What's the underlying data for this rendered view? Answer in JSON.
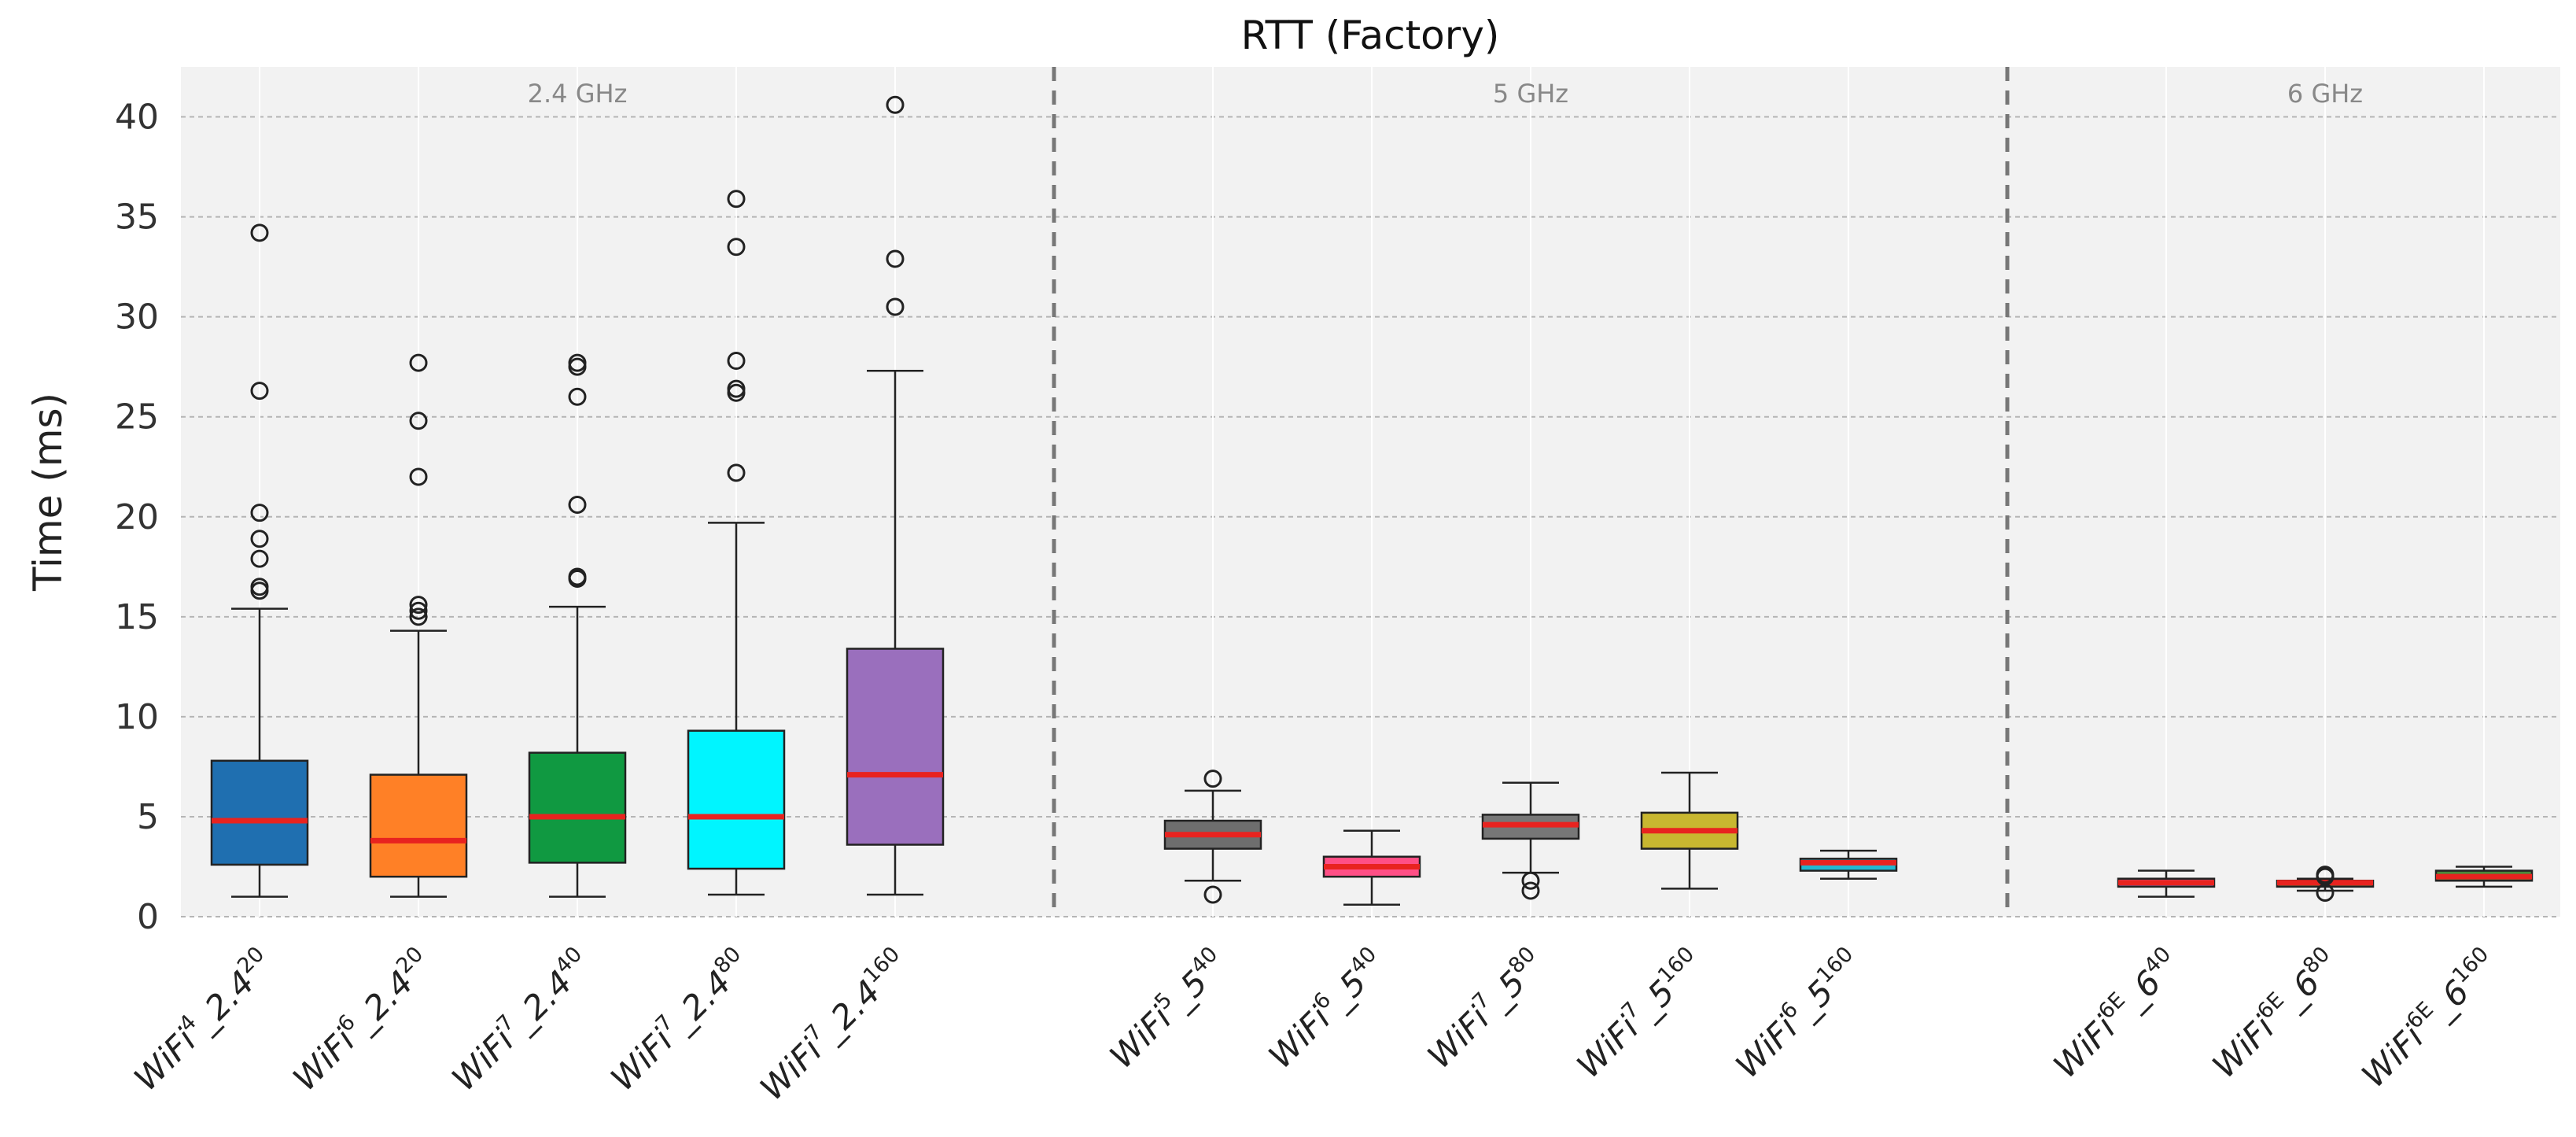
{
  "chart_data": {
    "type": "box",
    "title": "RTT (Factory)",
    "ylabel": "Time (ms)",
    "xlabel": "",
    "ylim": [
      0,
      42.5
    ],
    "yticks": [
      0,
      5,
      10,
      15,
      20,
      25,
      30,
      35,
      40
    ],
    "grid": true,
    "groups": [
      {
        "label": "2.4 GHz",
        "start": 0,
        "end": 4
      },
      {
        "label": "5 GHz",
        "start": 5,
        "end": 9
      },
      {
        "label": "6 GHz",
        "start": 10,
        "end": 12
      }
    ],
    "median_color": "#e8231f",
    "boxes": [
      {
        "label_main": "WiFi",
        "label_sup1": "4",
        "label_mid": "_2.4",
        "label_sup2": "20",
        "color": "#1f6fb0",
        "whisker_low": 1.0,
        "q1": 2.6,
        "median": 4.8,
        "q3": 7.8,
        "whisker_high": 15.4,
        "outliers": [
          16.3,
          16.5,
          17.9,
          18.9,
          20.2,
          26.3,
          34.2
        ]
      },
      {
        "label_main": "WiFi",
        "label_sup1": "6",
        "label_mid": "_2.4",
        "label_sup2": "20",
        "color": "#ff8026",
        "whisker_low": 1.0,
        "q1": 2.0,
        "median": 3.8,
        "q3": 7.1,
        "whisker_high": 14.3,
        "outliers": [
          15.0,
          15.3,
          15.6,
          22.0,
          24.8,
          27.7
        ]
      },
      {
        "label_main": "WiFi",
        "label_sup1": "7",
        "label_mid": "_2.4",
        "label_sup2": "40",
        "color": "#109941",
        "whisker_low": 1.0,
        "q1": 2.7,
        "median": 5.0,
        "q3": 8.2,
        "whisker_high": 15.5,
        "outliers": [
          16.9,
          17.0,
          20.6,
          26.0,
          27.5,
          27.7
        ]
      },
      {
        "label_main": "WiFi",
        "label_sup1": "7",
        "label_mid": "_2.4",
        "label_sup2": "80",
        "color": "#00f5ff",
        "whisker_low": 1.1,
        "q1": 2.4,
        "median": 5.0,
        "q3": 9.3,
        "whisker_high": 19.7,
        "outliers": [
          22.2,
          26.2,
          26.4,
          27.8,
          33.5,
          35.9
        ]
      },
      {
        "label_main": "WiFi",
        "label_sup1": "7",
        "label_mid": "_2.4",
        "label_sup2": "160",
        "color": "#9a6fbd",
        "whisker_low": 1.1,
        "q1": 3.6,
        "median": 7.1,
        "q3": 13.4,
        "whisker_high": 27.3,
        "outliers": [
          30.5,
          32.9,
          40.6
        ]
      },
      {
        "label_main": "WiFi",
        "label_sup1": "5",
        "label_mid": "_5",
        "label_sup2": "40",
        "color": "#6e6e6e",
        "whisker_low": 1.8,
        "q1": 3.4,
        "median": 4.1,
        "q3": 4.8,
        "whisker_high": 6.3,
        "outliers": [
          1.1,
          6.9
        ]
      },
      {
        "label_main": "WiFi",
        "label_sup1": "6",
        "label_mid": "_5",
        "label_sup2": "40",
        "color": "#ff4f86",
        "whisker_low": 0.6,
        "q1": 2.0,
        "median": 2.5,
        "q3": 3.0,
        "whisker_high": 4.3,
        "outliers": []
      },
      {
        "label_main": "WiFi",
        "label_sup1": "7",
        "label_mid": "_5",
        "label_sup2": "80",
        "color": "#777777",
        "whisker_low": 2.2,
        "q1": 3.9,
        "median": 4.6,
        "q3": 5.1,
        "whisker_high": 6.7,
        "outliers": [
          1.3,
          1.8
        ]
      },
      {
        "label_main": "WiFi",
        "label_sup1": "7",
        "label_mid": "_5",
        "label_sup2": "160",
        "color": "#c8b730",
        "whisker_low": 1.4,
        "q1": 3.4,
        "median": 4.3,
        "q3": 5.2,
        "whisker_high": 7.2,
        "outliers": []
      },
      {
        "label_main": "WiFi",
        "label_sup1": "6",
        "label_mid": "_5",
        "label_sup2": "160",
        "color": "#22b7d0",
        "whisker_low": 1.9,
        "q1": 2.3,
        "median": 2.7,
        "q3": 2.9,
        "whisker_high": 3.3,
        "outliers": []
      },
      {
        "label_main": "WiFi",
        "label_sup1": "6E",
        "label_mid": "_6",
        "label_sup2": "40",
        "color": "#9a6fbd",
        "whisker_low": 1.0,
        "q1": 1.5,
        "median": 1.7,
        "q3": 1.9,
        "whisker_high": 2.3,
        "outliers": []
      },
      {
        "label_main": "WiFi",
        "label_sup1": "6E",
        "label_mid": "_6",
        "label_sup2": "80",
        "color": "#8c6d2e",
        "whisker_low": 1.3,
        "q1": 1.5,
        "median": 1.7,
        "q3": 1.8,
        "whisker_high": 1.9,
        "outliers": [
          1.2,
          2.0,
          2.1
        ]
      },
      {
        "label_main": "WiFi",
        "label_sup1": "6E",
        "label_mid": "_6",
        "label_sup2": "160",
        "color": "#4a8a3a",
        "whisker_low": 1.5,
        "q1": 1.8,
        "median": 2.0,
        "q3": 2.3,
        "whisker_high": 2.5,
        "outliers": []
      }
    ]
  }
}
